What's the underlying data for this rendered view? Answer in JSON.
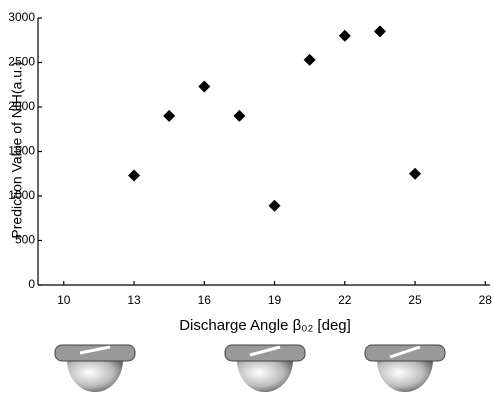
{
  "chart_data": {
    "type": "scatter",
    "x_label": "Discharge Angle β₀₂ [deg]",
    "y_label": "Prediction Value of NIH(a.u.)",
    "x": [
      13,
      14.5,
      16,
      17.5,
      19,
      20.5,
      22,
      23.5,
      25
    ],
    "values": [
      1230,
      1900,
      2230,
      1900,
      890,
      2530,
      2800,
      2850,
      1250
    ],
    "color": "#000000",
    "xlim": [
      8.9,
      28.2
    ],
    "xticks": [
      10,
      13,
      16,
      19,
      22,
      25,
      28
    ],
    "ylim": [
      0,
      3000
    ],
    "yticks": [
      0,
      500,
      1000,
      1500,
      2000,
      2500,
      3000
    ]
  }
}
